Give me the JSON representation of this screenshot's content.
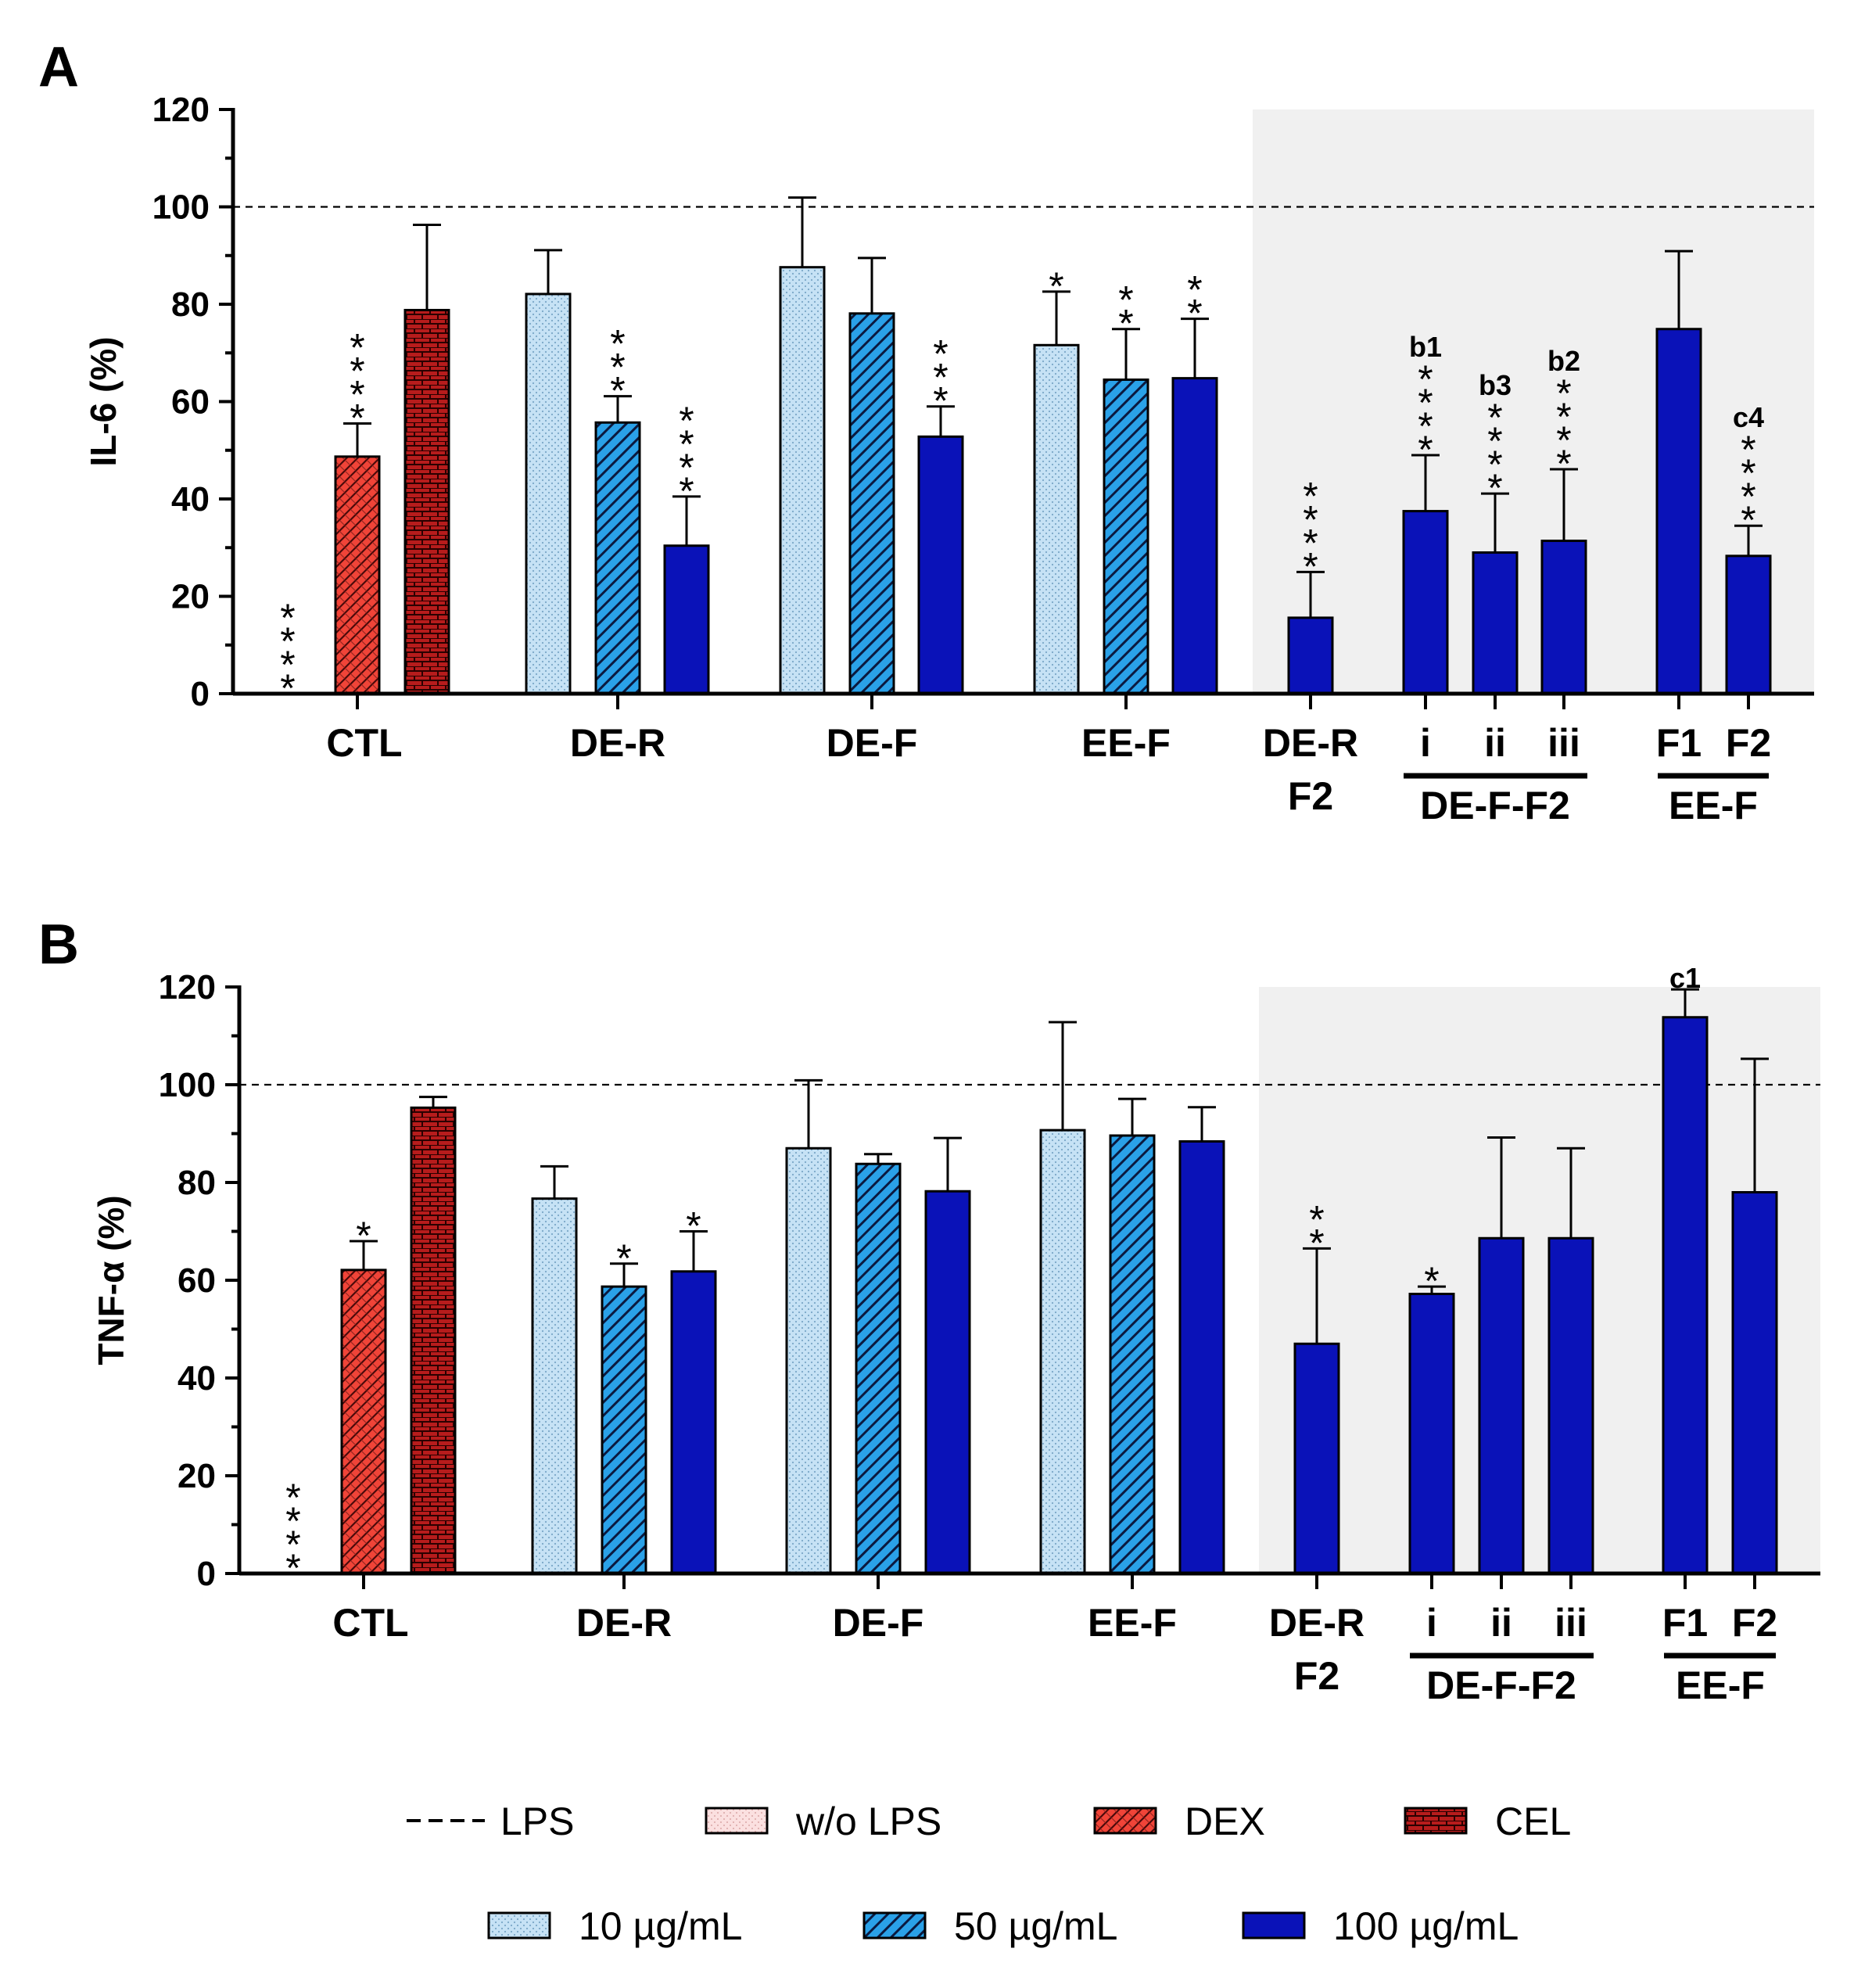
{
  "colors": {
    "ctl_dex": "#f04438",
    "cel": "#b71c1c",
    "c10": "#c6e2f5",
    "c50": "#2aa1e8",
    "c100": "#0a12b8",
    "shade": "#f0f0f0"
  },
  "chart_data": [
    {
      "type": "bar",
      "panel_label": "A",
      "ylabel": "IL-6 (%)",
      "ylim": [
        0,
        120
      ],
      "yticks": [
        "0",
        "20",
        "40",
        "60",
        "80",
        "100",
        "120"
      ],
      "reference_line": 100,
      "group_labels": [
        {
          "text": "CTL"
        },
        {
          "text": "DE-R"
        },
        {
          "text": "DE-F"
        },
        {
          "text": "EE-F"
        },
        {
          "text": "DE-R",
          "text2": "F2"
        },
        {
          "text": "DE-F-F2",
          "underline": true
        },
        {
          "text": "EE-F",
          "underline": true
        }
      ],
      "sub_labels": [
        "i",
        "ii",
        "iii",
        "F1",
        "F2"
      ],
      "bars": [
        {
          "group": "CTL",
          "series": "w/o LPS",
          "value": 0,
          "err": 0,
          "sig": "****"
        },
        {
          "group": "CTL",
          "series": "DEX",
          "value": 48.7,
          "err": 6.8,
          "sig": "****"
        },
        {
          "group": "CTL",
          "series": "CEL",
          "value": 78.8,
          "err": 17.5,
          "sig": ""
        },
        {
          "group": "DE-R",
          "series": "10 µg/mL",
          "value": 82.1,
          "err": 9.0,
          "sig": ""
        },
        {
          "group": "DE-R",
          "series": "50 µg/mL",
          "value": 55.7,
          "err": 5.4,
          "sig": "***"
        },
        {
          "group": "DE-R",
          "series": "100 µg/mL",
          "value": 30.4,
          "err": 10.1,
          "sig": "****"
        },
        {
          "group": "DE-F",
          "series": "10 µg/mL",
          "value": 87.6,
          "err": 14.3,
          "sig": ""
        },
        {
          "group": "DE-F",
          "series": "50 µg/mL",
          "value": 78.1,
          "err": 11.4,
          "sig": ""
        },
        {
          "group": "DE-F",
          "series": "100 µg/mL",
          "value": 52.8,
          "err": 6.2,
          "sig": "***"
        },
        {
          "group": "EE-F",
          "series": "10 µg/mL",
          "value": 71.6,
          "err": 11.0,
          "sig": "*"
        },
        {
          "group": "EE-F",
          "series": "50 µg/mL",
          "value": 64.5,
          "err": 10.4,
          "sig": "**"
        },
        {
          "group": "EE-F",
          "series": "100 µg/mL",
          "value": 64.8,
          "err": 12.2,
          "sig": "**"
        },
        {
          "group": "DE-R F2",
          "series": "100 µg/mL",
          "value": 15.6,
          "err": 9.4,
          "sig": "****"
        },
        {
          "group": "DE-F-F2 i",
          "series": "100 µg/mL",
          "value": 37.5,
          "err": 11.5,
          "sig": "****",
          "letter": "b1"
        },
        {
          "group": "DE-F-F2 ii",
          "series": "100 µg/mL",
          "value": 29.0,
          "err": 12.1,
          "sig": "****",
          "letter": "b3"
        },
        {
          "group": "DE-F-F2 iii",
          "series": "100 µg/mL",
          "value": 31.4,
          "err": 14.7,
          "sig": "****",
          "letter": "b2"
        },
        {
          "group": "EE-F F1",
          "series": "100 µg/mL",
          "value": 74.9,
          "err": 16.0,
          "sig": ""
        },
        {
          "group": "EE-F F2",
          "series": "100 µg/mL",
          "value": 28.3,
          "err": 6.2,
          "sig": "****",
          "letter": "c4"
        }
      ]
    },
    {
      "type": "bar",
      "panel_label": "B",
      "ylabel": "TNF-α (%)",
      "ylim": [
        0,
        120
      ],
      "yticks": [
        "0",
        "20",
        "40",
        "60",
        "80",
        "100",
        "120"
      ],
      "reference_line": 100,
      "group_labels": [
        {
          "text": "CTL"
        },
        {
          "text": "DE-R"
        },
        {
          "text": "DE-F"
        },
        {
          "text": "EE-F"
        },
        {
          "text": "DE-R",
          "text2": "F2"
        },
        {
          "text": "DE-F-F2",
          "underline": true
        },
        {
          "text": "EE-F",
          "underline": true
        }
      ],
      "sub_labels": [
        "i",
        "ii",
        "iii",
        "F1",
        "F2"
      ],
      "bars": [
        {
          "group": "CTL",
          "series": "w/o LPS",
          "value": 0,
          "err": 0,
          "sig": "****"
        },
        {
          "group": "CTL",
          "series": "DEX",
          "value": 62.1,
          "err": 5.9,
          "sig": "*"
        },
        {
          "group": "CTL",
          "series": "CEL",
          "value": 95.3,
          "err": 2.2,
          "sig": ""
        },
        {
          "group": "DE-R",
          "series": "10 µg/mL",
          "value": 76.7,
          "err": 6.6,
          "sig": ""
        },
        {
          "group": "DE-R",
          "series": "50 µg/mL",
          "value": 58.7,
          "err": 4.7,
          "sig": "*"
        },
        {
          "group": "DE-R",
          "series": "100 µg/mL",
          "value": 61.8,
          "err": 8.2,
          "sig": "*"
        },
        {
          "group": "DE-F",
          "series": "10 µg/mL",
          "value": 87.0,
          "err": 13.9,
          "sig": ""
        },
        {
          "group": "DE-F",
          "series": "50 µg/mL",
          "value": 83.8,
          "err": 2.0,
          "sig": ""
        },
        {
          "group": "DE-F",
          "series": "100 µg/mL",
          "value": 78.2,
          "err": 10.9,
          "sig": ""
        },
        {
          "group": "EE-F",
          "series": "10 µg/mL",
          "value": 90.7,
          "err": 22.1,
          "sig": ""
        },
        {
          "group": "EE-F",
          "series": "50 µg/mL",
          "value": 89.6,
          "err": 7.5,
          "sig": ""
        },
        {
          "group": "EE-F",
          "series": "100 µg/mL",
          "value": 88.4,
          "err": 7.0,
          "sig": ""
        },
        {
          "group": "DE-R F2",
          "series": "100 µg/mL",
          "value": 47.0,
          "err": 19.5,
          "sig": "**"
        },
        {
          "group": "DE-F-F2 i",
          "series": "100 µg/mL",
          "value": 57.2,
          "err": 1.5,
          "sig": "*"
        },
        {
          "group": "DE-F-F2 ii",
          "series": "100 µg/mL",
          "value": 68.6,
          "err": 20.6,
          "sig": ""
        },
        {
          "group": "DE-F-F2 iii",
          "series": "100 µg/mL",
          "value": 68.6,
          "err": 18.4,
          "sig": ""
        },
        {
          "group": "EE-F F1",
          "series": "100 µg/mL",
          "value": 113.8,
          "err": 5.7,
          "sig": "",
          "letter": "c1"
        },
        {
          "group": "EE-F F2",
          "series": "100 µg/mL",
          "value": 78.0,
          "err": 27.3,
          "sig": ""
        }
      ]
    }
  ],
  "legend": [
    {
      "key": "lps",
      "label": "LPS"
    },
    {
      "key": "wo",
      "label": "w/o LPS"
    },
    {
      "key": "dex",
      "label": "DEX"
    },
    {
      "key": "cel",
      "label": "CEL"
    },
    {
      "key": "c10",
      "label": "10 µg/mL"
    },
    {
      "key": "c50",
      "label": "50 µg/mL"
    },
    {
      "key": "c100",
      "label": "100 µg/mL"
    }
  ]
}
